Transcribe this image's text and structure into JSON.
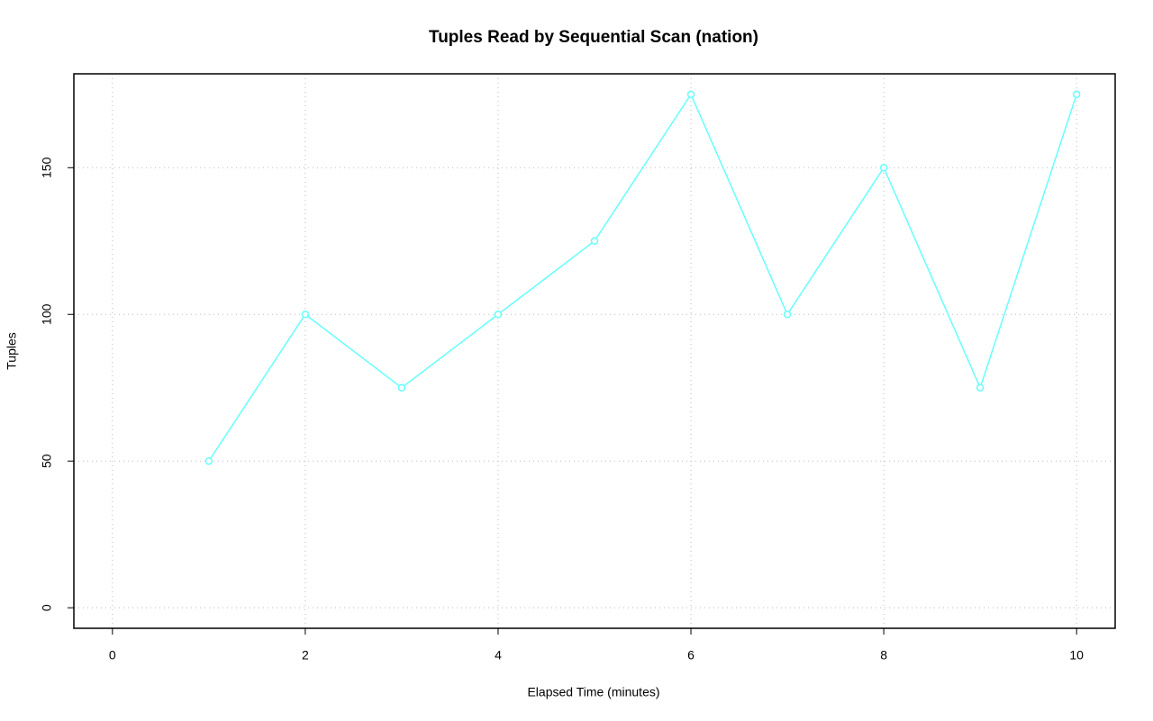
{
  "chart_data": {
    "type": "line",
    "title": "Tuples Read by Sequential Scan (nation)",
    "x_label": "Elapsed Time (minutes)",
    "y_label": "Tuples",
    "x": [
      1,
      2,
      3,
      4,
      5,
      6,
      7,
      8,
      9,
      10
    ],
    "series": [
      {
        "name": "nation",
        "color": "#66ffff",
        "values": [
          50,
          100,
          75,
          100,
          125,
          175,
          100,
          150,
          75,
          175
        ]
      }
    ],
    "xlim": [
      -0.4,
      10.4
    ],
    "ylim": [
      -7,
      182
    ],
    "xticks": [
      0,
      2,
      4,
      6,
      8,
      10
    ],
    "yticks": [
      0,
      50,
      100,
      150
    ],
    "grid": true
  }
}
